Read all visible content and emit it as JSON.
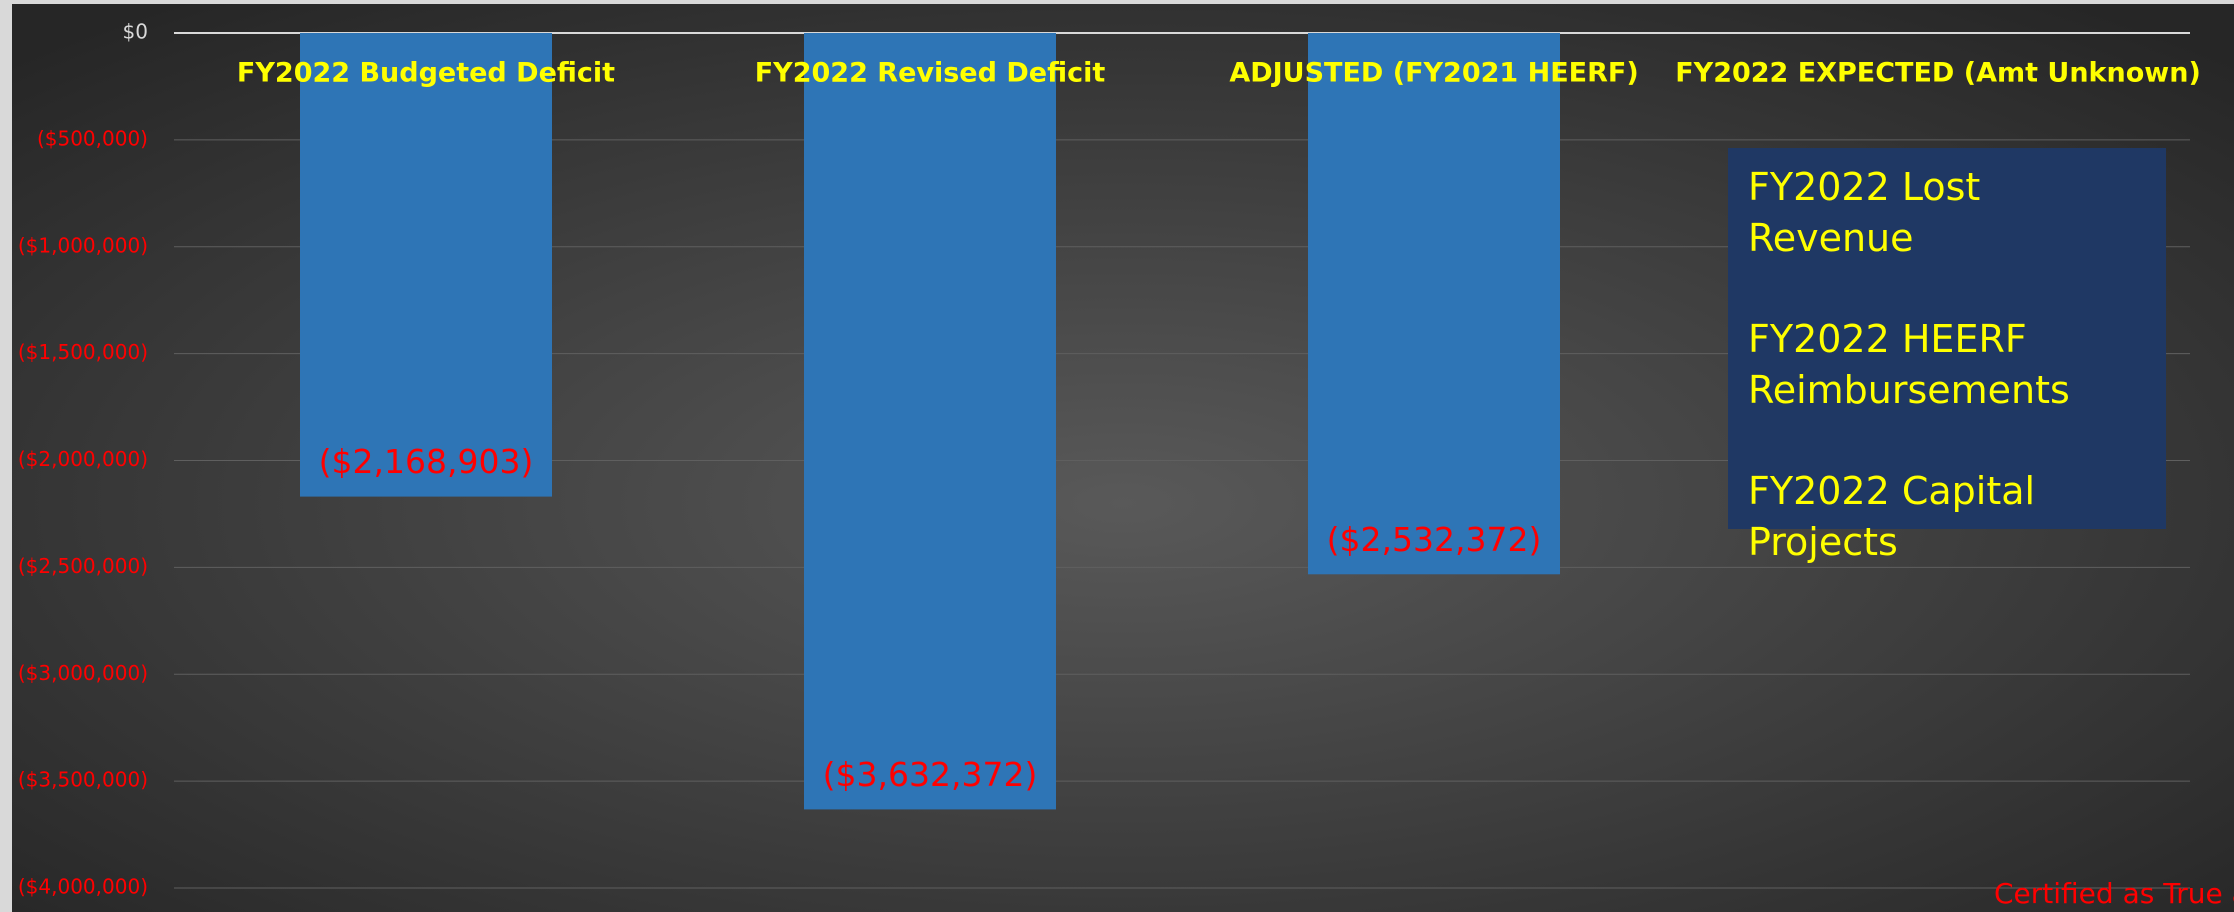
{
  "chart_data": {
    "type": "bar",
    "categories": [
      "FY2022 Budgeted Deficit",
      "FY2022 Revised Deficit",
      "ADJUSTED (FY2021 HEERF)",
      "FY2022 EXPECTED (Amt Unknown)"
    ],
    "values": [
      -2168903,
      -3632372,
      -2532372,
      null
    ],
    "value_labels": [
      "($2,168,903)",
      "($3,632,372)",
      "($2,532,372)",
      null
    ],
    "color": "#2e75b6",
    "category_color": "#ffff00",
    "negative_color": "#ff0000",
    "ylim": [
      -4000000,
      0
    ],
    "yticks": [
      {
        "value": 0,
        "label": "$0"
      },
      {
        "value": -500000,
        "label": "($500,000)"
      },
      {
        "value": -1000000,
        "label": "($1,000,000)"
      },
      {
        "value": -1500000,
        "label": "($1,500,000)"
      },
      {
        "value": -2000000,
        "label": "($2,000,000)"
      },
      {
        "value": -2500000,
        "label": "($2,500,000)"
      },
      {
        "value": -3000000,
        "label": "($3,000,000)"
      },
      {
        "value": -3500000,
        "label": "($3,500,000)"
      },
      {
        "value": -4000000,
        "label": "($4,000,000)"
      }
    ],
    "grid": true,
    "annotations": [
      "FY2022 Lost Revenue",
      "FY2022 HEERF Reimbursements",
      "FY2022 Capital Projects"
    ],
    "footnote": "Certified as True an"
  }
}
